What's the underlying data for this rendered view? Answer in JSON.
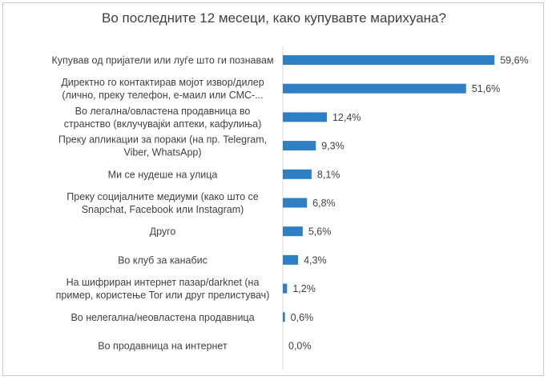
{
  "chart_data": {
    "type": "bar",
    "orientation": "horizontal",
    "title": "Во последните 12 месеци, како купувавте марихуана?",
    "categories": [
      [
        "Купував од пријатели или луѓе што ги познавам"
      ],
      [
        "Директно го контактирав мојот извор/дилер",
        "(лично, преку телефон, е-маил или СМС-..."
      ],
      [
        "Во легална/овластена продавница во",
        "странство (вклучувајќи аптеки, кафулиња)"
      ],
      [
        "Преку апликации за пораки (на пр. Telegram,",
        "Viber, WhatsApp)"
      ],
      [
        "Ми се нудеше на улица"
      ],
      [
        "Преку социјалните медиуми (како што се",
        "Snapchat, Facebook или Instagram)"
      ],
      [
        "Друго"
      ],
      [
        "Во клуб за канабис"
      ],
      [
        "На шифриран интернет пазар/darknet (на",
        "пример, користење Tor или друг прелистувач)"
      ],
      [
        "Во нелегална/неовластена продавница"
      ],
      [
        "Во продавница на интернет"
      ]
    ],
    "values": [
      59.6,
      51.6,
      12.4,
      9.3,
      8.1,
      6.8,
      5.6,
      4.3,
      1.2,
      0.6,
      0.0
    ],
    "value_labels": [
      "59,6%",
      "51,6%",
      "12,4%",
      "9,3%",
      "8,1%",
      "6,8%",
      "5,6%",
      "4,3%",
      "1,2%",
      "0,6%",
      "0,0%"
    ],
    "xlim": [
      0,
      60
    ],
    "grid": false,
    "bar_color": "#2e7fc4",
    "axis_color": "#d9d9d9"
  }
}
